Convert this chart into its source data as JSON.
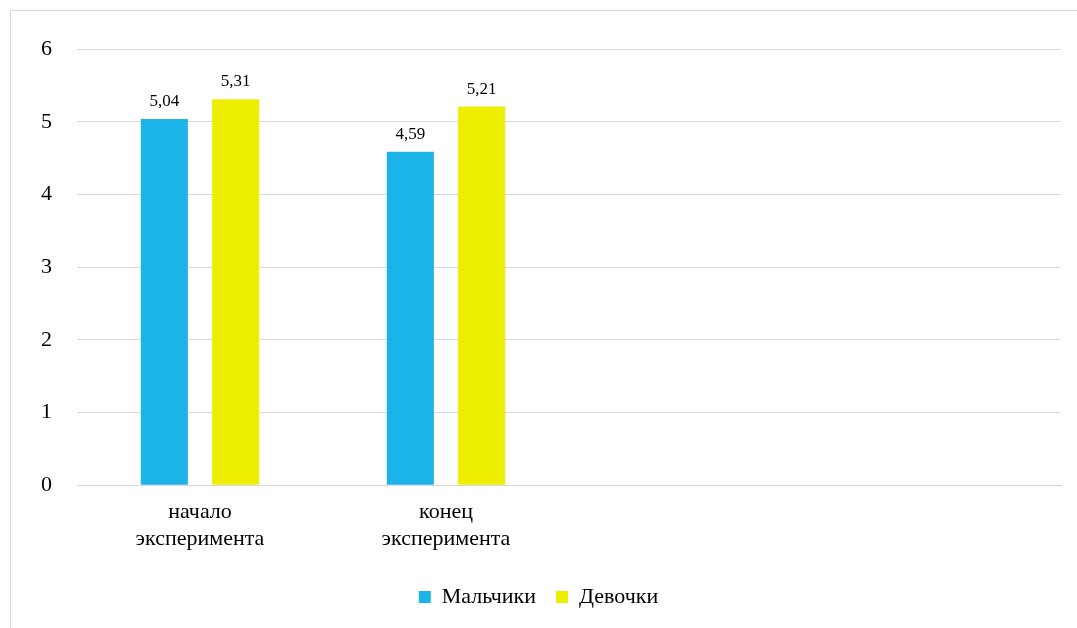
{
  "chart_data": {
    "type": "bar",
    "categories": [
      "начало эксперимента",
      "конец эксперимента",
      null,
      null
    ],
    "series": [
      {
        "name": "Мальчики",
        "color": "#1cb4e8",
        "values": [
          5.04,
          4.59,
          null,
          null
        ],
        "value_labels": [
          "5,04",
          "4,59",
          null,
          null
        ]
      },
      {
        "name": "Девочки",
        "color": "#eeee00",
        "values": [
          5.31,
          5.21,
          null,
          null
        ],
        "value_labels": [
          "5,31",
          "5,21",
          null,
          null
        ]
      }
    ],
    "ylim": [
      0,
      6
    ],
    "yticks": [
      0,
      1,
      2,
      3,
      4,
      5,
      6
    ],
    "grid": "y",
    "legend": "bottom"
  }
}
